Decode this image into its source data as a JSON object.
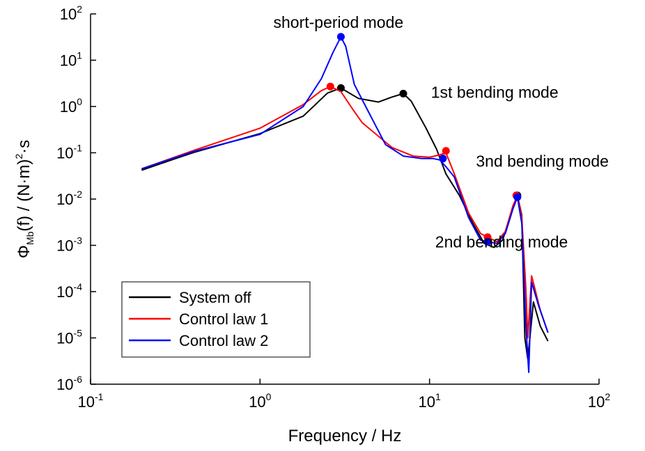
{
  "chart_data": {
    "type": "line",
    "xlabel": "Frequency / Hz",
    "ylabel": {
      "base": "Φ",
      "sub1": "Mb",
      "mid": "(f) / (N·m)",
      "sup": "2",
      "tail": "·s"
    },
    "x_scale": "log",
    "y_scale": "log",
    "xlim": [
      0.1,
      100
    ],
    "ylim": [
      1e-06,
      100
    ],
    "x_ticks": [
      {
        "value": 0.1,
        "base": "10",
        "exp": "-1"
      },
      {
        "value": 1,
        "base": "10",
        "exp": "0"
      },
      {
        "value": 10,
        "base": "10",
        "exp": "1"
      },
      {
        "value": 100,
        "base": "10",
        "exp": "2"
      }
    ],
    "y_ticks": [
      {
        "value": 100,
        "base": "10",
        "exp": "2"
      },
      {
        "value": 10,
        "base": "10",
        "exp": "1"
      },
      {
        "value": 1,
        "base": "10",
        "exp": "0"
      },
      {
        "value": 0.1,
        "base": "10",
        "exp": "-1"
      },
      {
        "value": 0.01,
        "base": "10",
        "exp": "-2"
      },
      {
        "value": 0.001,
        "base": "10",
        "exp": "-3"
      },
      {
        "value": 0.0001,
        "base": "10",
        "exp": "-4"
      },
      {
        "value": 1e-05,
        "base": "10",
        "exp": "-5"
      },
      {
        "value": 1e-06,
        "base": "10",
        "exp": "-6"
      }
    ],
    "grid": false,
    "legend_position": "bottom-left",
    "series": [
      {
        "name": "System off",
        "color": "#000000",
        "points": [
          [
            0.2,
            0.042
          ],
          [
            0.4,
            0.1
          ],
          [
            1.0,
            0.26
          ],
          [
            1.8,
            0.62
          ],
          [
            2.5,
            1.95
          ],
          [
            3.0,
            2.5
          ],
          [
            3.8,
            1.5
          ],
          [
            5.0,
            1.25
          ],
          [
            6.0,
            1.6
          ],
          [
            7.0,
            1.9
          ],
          [
            7.8,
            1.3
          ],
          [
            9.5,
            0.35
          ],
          [
            11.0,
            0.12
          ],
          [
            12.5,
            0.035
          ],
          [
            15.0,
            0.012
          ],
          [
            18.0,
            0.003
          ],
          [
            21.0,
            0.0011
          ],
          [
            24.0,
            0.0009
          ],
          [
            27.0,
            0.0013
          ],
          [
            30.0,
            0.0045
          ],
          [
            33.0,
            0.012
          ],
          [
            35.0,
            0.0045
          ],
          [
            36.5,
            1e-05
          ],
          [
            38.0,
            3.5e-06
          ],
          [
            41.0,
            6e-05
          ],
          [
            45.0,
            1.8e-05
          ],
          [
            50.0,
            8.5e-06
          ]
        ],
        "markers": [
          [
            3.0,
            2.5
          ],
          [
            7.0,
            1.9
          ],
          [
            33.0,
            0.012
          ]
        ]
      },
      {
        "name": "Control law 1",
        "color": "#ff0000",
        "points": [
          [
            0.2,
            0.045
          ],
          [
            0.4,
            0.11
          ],
          [
            1.0,
            0.34
          ],
          [
            1.8,
            1.1
          ],
          [
            2.3,
            2.2
          ],
          [
            2.6,
            2.7
          ],
          [
            3.0,
            2.1
          ],
          [
            3.5,
            0.9
          ],
          [
            4.0,
            0.45
          ],
          [
            6.0,
            0.13
          ],
          [
            8.0,
            0.085
          ],
          [
            10.0,
            0.08
          ],
          [
            11.5,
            0.09
          ],
          [
            12.5,
            0.1
          ],
          [
            14.0,
            0.035
          ],
          [
            17.0,
            0.005
          ],
          [
            20.0,
            0.0018
          ],
          [
            22.0,
            0.0015
          ],
          [
            25.0,
            0.0012
          ],
          [
            28.0,
            0.002
          ],
          [
            31.0,
            0.007
          ],
          [
            33.0,
            0.012
          ],
          [
            35.0,
            0.004
          ],
          [
            37.0,
            0.00012
          ],
          [
            38.0,
            1e-05
          ],
          [
            40.0,
            0.00022
          ],
          [
            45.0,
            4e-05
          ],
          [
            50.0,
            1.3e-05
          ]
        ],
        "markers": [
          [
            2.6,
            2.7
          ],
          [
            12.5,
            0.11
          ],
          [
            22.0,
            0.0015
          ],
          [
            32.5,
            0.012
          ]
        ]
      },
      {
        "name": "Control law 2",
        "color": "#0000ff",
        "points": [
          [
            0.2,
            0.045
          ],
          [
            0.4,
            0.105
          ],
          [
            1.0,
            0.25
          ],
          [
            1.8,
            1.0
          ],
          [
            2.3,
            4.0
          ],
          [
            2.7,
            15.0
          ],
          [
            3.0,
            32.0
          ],
          [
            3.2,
            20.0
          ],
          [
            3.6,
            3.0
          ],
          [
            4.2,
            1.0
          ],
          [
            5.5,
            0.15
          ],
          [
            7.0,
            0.085
          ],
          [
            9.0,
            0.075
          ],
          [
            10.5,
            0.075
          ],
          [
            11.5,
            0.07
          ],
          [
            12.5,
            0.05
          ],
          [
            14.0,
            0.03
          ],
          [
            17.0,
            0.004
          ],
          [
            20.0,
            0.0013
          ],
          [
            22.0,
            0.0012
          ],
          [
            25.0,
            0.0011
          ],
          [
            28.0,
            0.0018
          ],
          [
            31.0,
            0.006
          ],
          [
            33.0,
            0.011
          ],
          [
            35.0,
            0.003
          ],
          [
            37.0,
            2e-05
          ],
          [
            38.5,
            1.8e-06
          ],
          [
            40.0,
            0.00016
          ],
          [
            44.0,
            5e-05
          ],
          [
            50.0,
            1.3e-05
          ]
        ],
        "markers": [
          [
            3.0,
            32.0
          ],
          [
            12.0,
            0.075
          ],
          [
            22.0,
            0.0012
          ],
          [
            33.0,
            0.011
          ]
        ]
      }
    ],
    "annotations": [
      {
        "text": "short-period mode",
        "x": 2.9,
        "y": 50,
        "anchor": "middle"
      },
      {
        "text": "1st bending mode",
        "x": 10.2,
        "y": 1.55,
        "anchor": "start"
      },
      {
        "text": "3nd bending mode",
        "x": 18.8,
        "y": 0.05,
        "anchor": "start"
      },
      {
        "text": "2nd bending mode",
        "x": 10.8,
        "y": 0.0009,
        "anchor": "start"
      }
    ]
  }
}
